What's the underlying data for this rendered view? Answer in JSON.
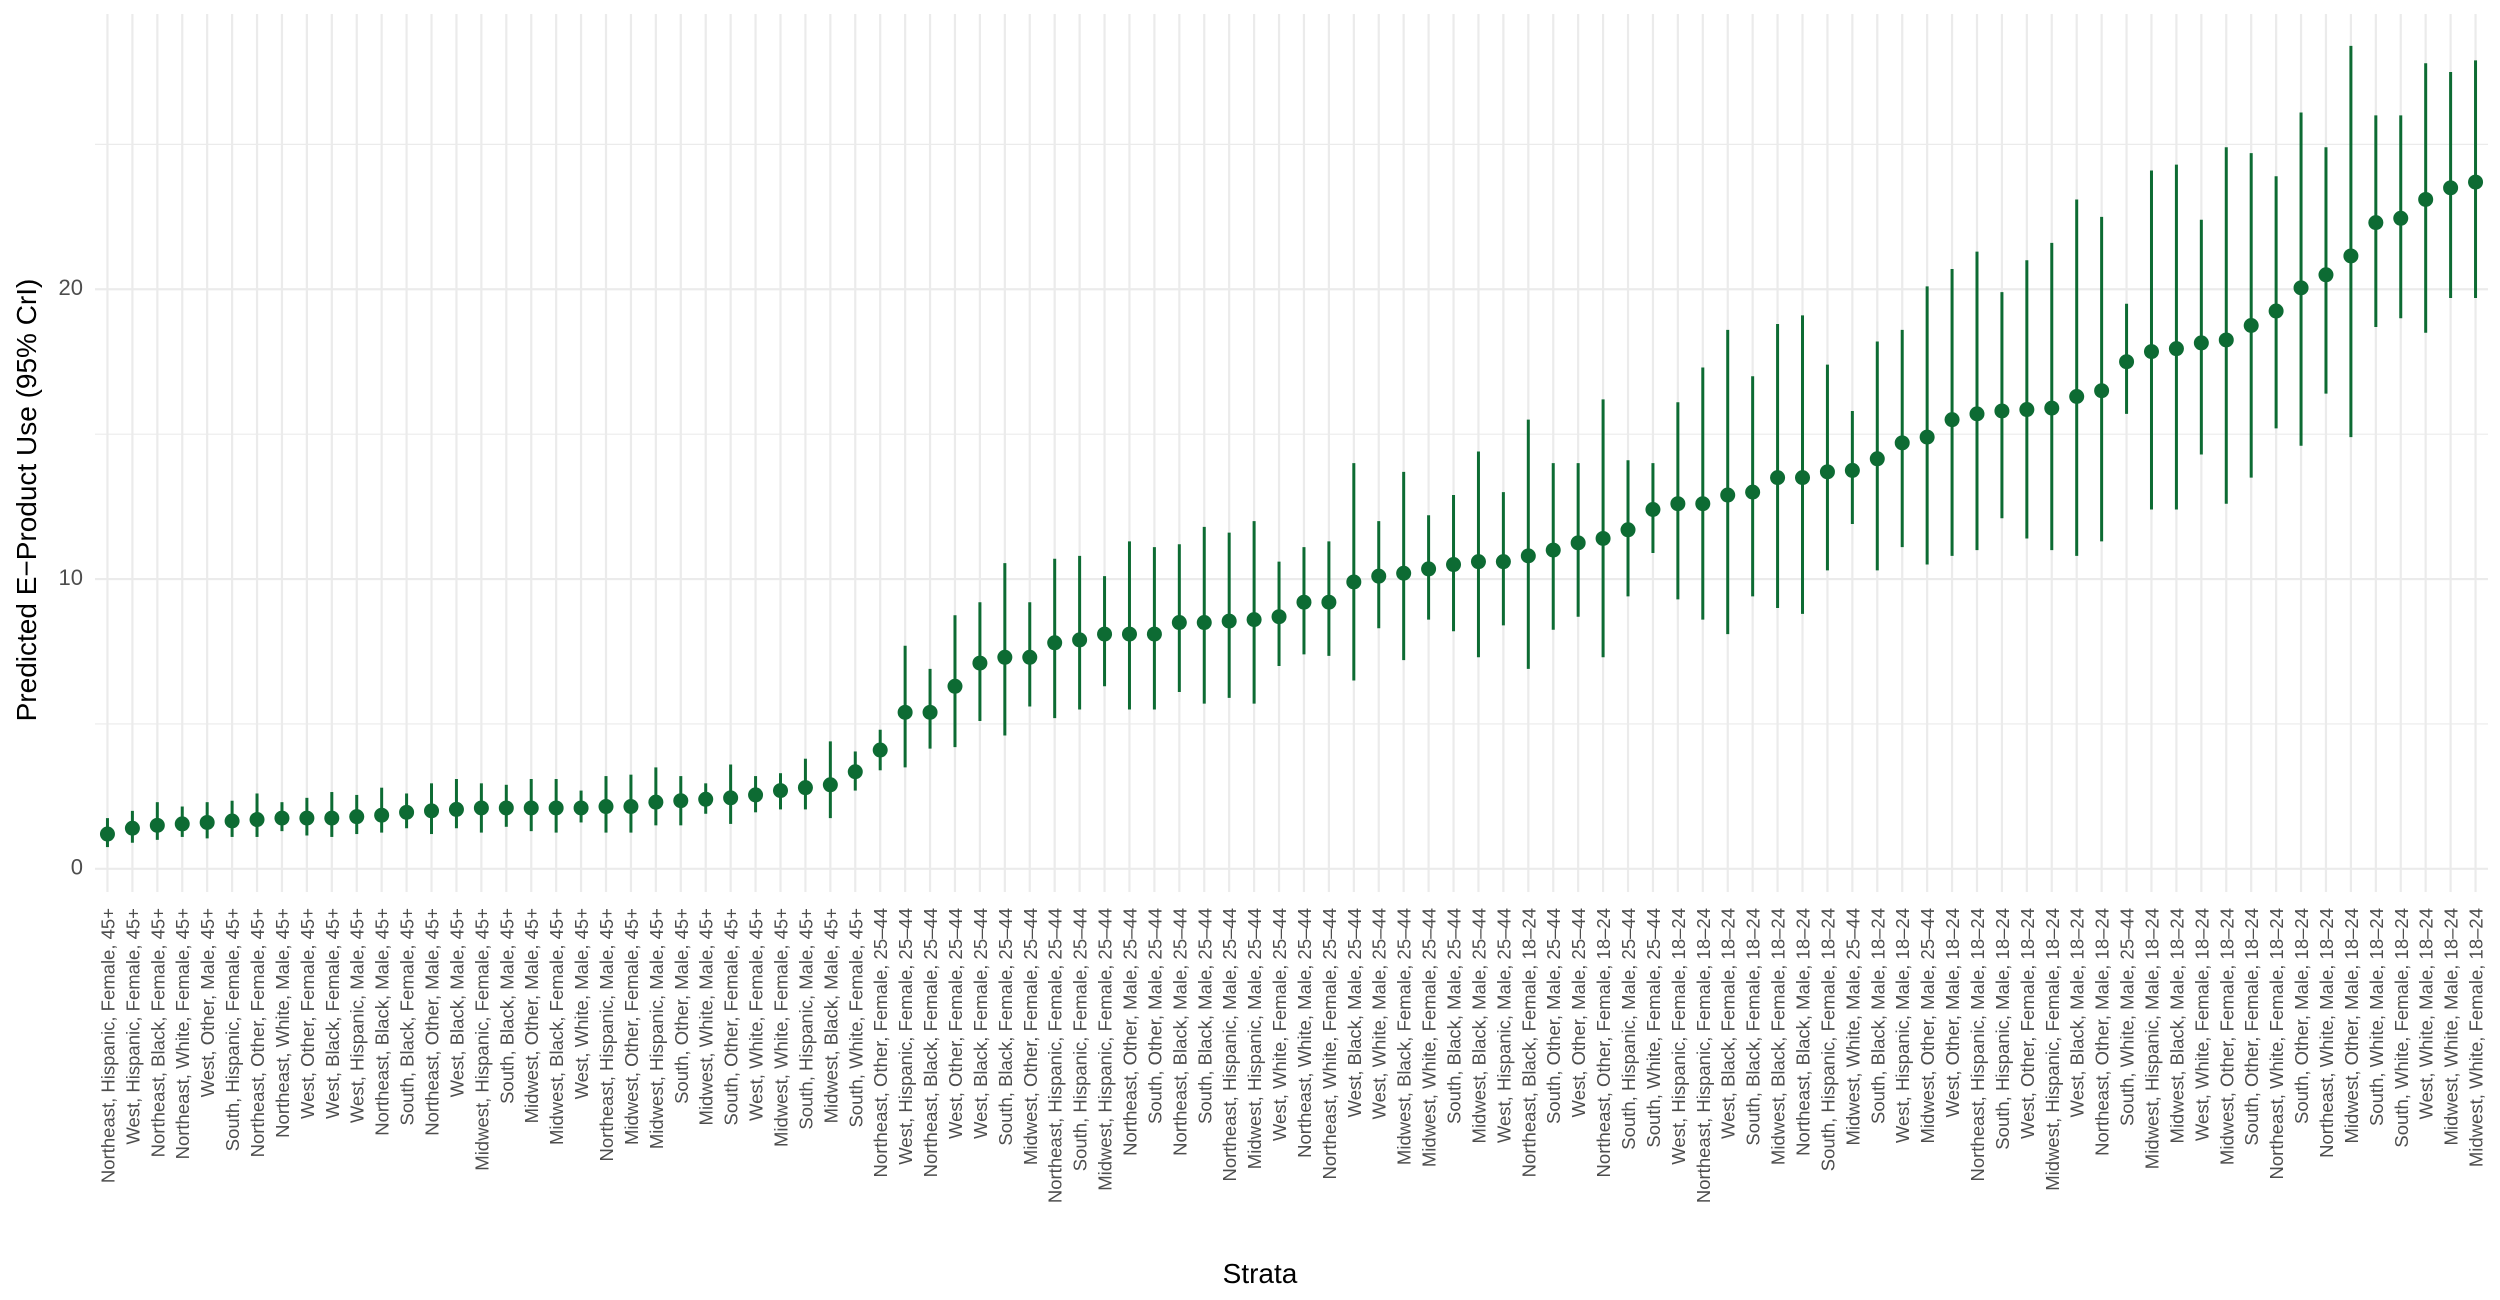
{
  "colors": {
    "point": "#0d6b33",
    "grid": "#ebebeb",
    "background": "#ffffff"
  },
  "chart_data": {
    "type": "scatter",
    "subtype": "point-range",
    "xlabel": "Strata",
    "ylabel": "Predicted E−Product Use (95% CrI)",
    "ylim": [
      -0.8,
      29.5
    ],
    "y_ticks": [
      0,
      10,
      20
    ],
    "grid": true,
    "categories": [
      "Northeast, Hispanic, Female, 45+",
      "West, Hispanic, Female, 45+",
      "Northeast, Black, Female, 45+",
      "Northeast, White, Female, 45+",
      "West, Other, Male, 45+",
      "South, Hispanic, Female, 45+",
      "Northeast, Other, Female, 45+",
      "Northeast, White, Male, 45+",
      "West, Other, Female, 45+",
      "West, Black, Female, 45+",
      "West, Hispanic, Male, 45+",
      "Northeast, Black, Male, 45+",
      "South, Black, Female, 45+",
      "Northeast, Other, Male, 45+",
      "West, Black, Male, 45+",
      "Midwest, Hispanic, Female, 45+",
      "South, Black, Male, 45+",
      "Midwest, Other, Male, 45+",
      "Midwest, Black, Female, 45+",
      "West, White, Male, 45+",
      "Northeast, Hispanic, Male, 45+",
      "Midwest, Other, Female, 45+",
      "Midwest, Hispanic, Male, 45+",
      "South, Other, Male, 45+",
      "Midwest, White, Male, 45+",
      "South, Other, Female, 45+",
      "West, White, Female, 45+",
      "Midwest, White, Female, 45+",
      "South, Hispanic, Male, 45+",
      "Midwest, Black, Male, 45+",
      "South, White, Female, 45+",
      "Northeast, Other, Female, 25–44",
      "West, Hispanic, Female, 25–44",
      "Northeast, Black, Female, 25–44",
      "West, Other, Female, 25–44",
      "West, Black, Female, 25–44",
      "South, Black, Female, 25–44",
      "Midwest, Other, Female, 25–44",
      "Northeast, Hispanic, Female, 25–44",
      "South, Hispanic, Female, 25–44",
      "Midwest, Hispanic, Female, 25–44",
      "Northeast, Other, Male, 25–44",
      "South, Other, Male, 25–44",
      "Northeast, Black, Male, 25–44",
      "South, Black, Male, 25–44",
      "Northeast, Hispanic, Male, 25–44",
      "Midwest, Hispanic, Male, 25–44",
      "West, White, Female, 25–44",
      "Northeast, White, Male, 25–44",
      "Northeast, White, Female, 25–44",
      "West, Black, Male, 25–44",
      "West, White, Male, 25–44",
      "Midwest, Black, Female, 25–44",
      "Midwest, White, Female, 25–44",
      "South, Black, Male, 25–44",
      "Midwest, Black, Male, 25–44",
      "West, Hispanic, Male, 25–44",
      "Northeast, Black, Female, 18–24",
      "South, Other, Male, 25–44",
      "West, Other, Male, 25–44",
      "Northeast, Other, Female, 18–24",
      "South, Hispanic, Male, 25–44",
      "South, White, Female, 25–44",
      "West, Hispanic, Female, 18–24",
      "Northeast, Hispanic, Female, 18–24",
      "West, Black, Female, 18–24",
      "South, Black, Female, 18–24",
      "Midwest, Black, Female, 18–24",
      "Northeast, Black, Male, 18–24",
      "South, Hispanic, Female, 18–24",
      "Midwest, White, Male, 25–44",
      "South, Black, Male, 18–24",
      "West, Hispanic, Male, 18–24",
      "Midwest, Other, Male, 25–44",
      "West, Other, Male, 18–24",
      "Northeast, Hispanic, Male, 18–24",
      "South, Hispanic, Male, 18–24",
      "West, Other, Female, 18–24",
      "Midwest, Hispanic, Female, 18–24",
      "West, Black, Male, 18–24",
      "Northeast, Other, Male, 18–24",
      "South, White, Male, 25–44",
      "Midwest, Hispanic, Male, 18–24",
      "Midwest, Black, Male, 18–24",
      "West, White, Female, 18–24",
      "Midwest, Other, Female, 18–24",
      "South, Other, Female, 18–24",
      "Northeast, White, Female, 18–24",
      "South, Other, Male, 18–24",
      "Northeast, White, Male, 18–24",
      "Midwest, Other, Male, 18–24",
      "South, White, Male, 18–24",
      "South, White, Female, 18–24",
      "West, White, Male, 18–24",
      "Midwest, White, Male, 18–24",
      "Midwest, White, Female, 18–24"
    ],
    "series": [
      {
        "estimate": [
          1.2,
          1.4,
          1.5,
          1.55,
          1.6,
          1.65,
          1.7,
          1.75,
          1.75,
          1.75,
          1.8,
          1.85,
          1.95,
          2.0,
          2.05,
          2.1,
          2.1,
          2.1,
          2.1,
          2.1,
          2.15,
          2.15,
          2.3,
          2.35,
          2.4,
          2.45,
          2.55,
          2.7,
          2.8,
          2.9,
          3.35,
          4.1,
          5.4,
          5.4,
          6.3,
          7.1,
          7.3,
          7.3,
          7.8,
          7.9,
          8.1,
          8.1,
          8.1,
          8.5,
          8.5,
          8.55,
          8.6,
          8.7,
          9.2,
          9.2,
          9.9,
          10.1,
          10.2,
          10.35,
          10.5,
          10.6,
          10.6,
          10.8,
          11.0,
          11.25,
          11.4,
          11.7,
          12.4,
          12.6,
          12.6,
          12.9,
          13.0,
          13.5,
          13.5,
          13.7,
          13.75,
          14.15,
          14.7,
          14.9,
          15.5,
          15.7,
          15.8,
          15.85,
          15.9,
          16.3,
          16.5,
          17.5,
          17.85,
          17.95,
          18.15,
          18.25,
          18.75,
          19.25,
          20.05,
          20.5,
          21.15,
          22.3,
          22.45,
          23.1,
          23.5,
          23.7
        ],
        "lower": [
          0.75,
          0.9,
          1.0,
          1.1,
          1.05,
          1.1,
          1.1,
          1.3,
          1.15,
          1.1,
          1.2,
          1.25,
          1.4,
          1.2,
          1.4,
          1.25,
          1.45,
          1.3,
          1.25,
          1.6,
          1.25,
          1.25,
          1.5,
          1.5,
          1.9,
          1.55,
          1.95,
          2.05,
          2.05,
          1.75,
          2.7,
          3.4,
          3.5,
          4.15,
          4.2,
          5.1,
          4.6,
          5.6,
          5.2,
          5.5,
          6.3,
          5.5,
          5.5,
          6.1,
          5.7,
          5.9,
          5.7,
          7.0,
          7.4,
          7.35,
          6.5,
          8.3,
          7.2,
          8.6,
          8.2,
          7.3,
          8.4,
          6.9,
          8.25,
          8.7,
          7.3,
          9.4,
          10.9,
          9.3,
          8.6,
          8.1,
          9.4,
          9.0,
          8.8,
          10.3,
          11.9,
          10.3,
          11.1,
          10.5,
          10.8,
          11.0,
          12.1,
          11.4,
          11.0,
          10.8,
          11.3,
          15.7,
          12.4,
          12.4,
          14.3,
          12.6,
          13.5,
          15.2,
          14.6,
          16.4,
          14.9,
          18.7,
          19.0,
          18.5,
          19.7,
          19.7
        ],
        "upper": [
          1.75,
          2.0,
          2.3,
          2.15,
          2.3,
          2.35,
          2.6,
          2.3,
          2.45,
          2.65,
          2.55,
          2.8,
          2.6,
          2.95,
          3.1,
          2.95,
          2.9,
          3.1,
          3.1,
          2.7,
          3.2,
          3.25,
          3.5,
          3.2,
          2.95,
          3.6,
          3.2,
          3.3,
          3.8,
          4.4,
          4.05,
          4.8,
          7.7,
          6.9,
          8.75,
          9.2,
          10.55,
          9.2,
          10.7,
          10.8,
          10.1,
          11.3,
          11.1,
          11.2,
          11.8,
          11.6,
          12.0,
          10.6,
          11.1,
          11.3,
          14.0,
          12.0,
          13.7,
          12.2,
          12.9,
          14.4,
          13.0,
          15.5,
          14.0,
          14.0,
          16.2,
          14.1,
          14.0,
          16.1,
          17.3,
          18.6,
          17.0,
          18.8,
          19.1,
          17.4,
          15.8,
          18.2,
          18.6,
          20.1,
          20.7,
          21.3,
          19.9,
          21.0,
          21.6,
          23.1,
          22.5,
          19.5,
          24.1,
          24.3,
          22.4,
          24.9,
          24.7,
          23.9,
          26.1,
          24.9,
          28.4,
          26.0,
          26.0,
          27.8,
          27.5,
          27.9
        ]
      }
    ]
  }
}
